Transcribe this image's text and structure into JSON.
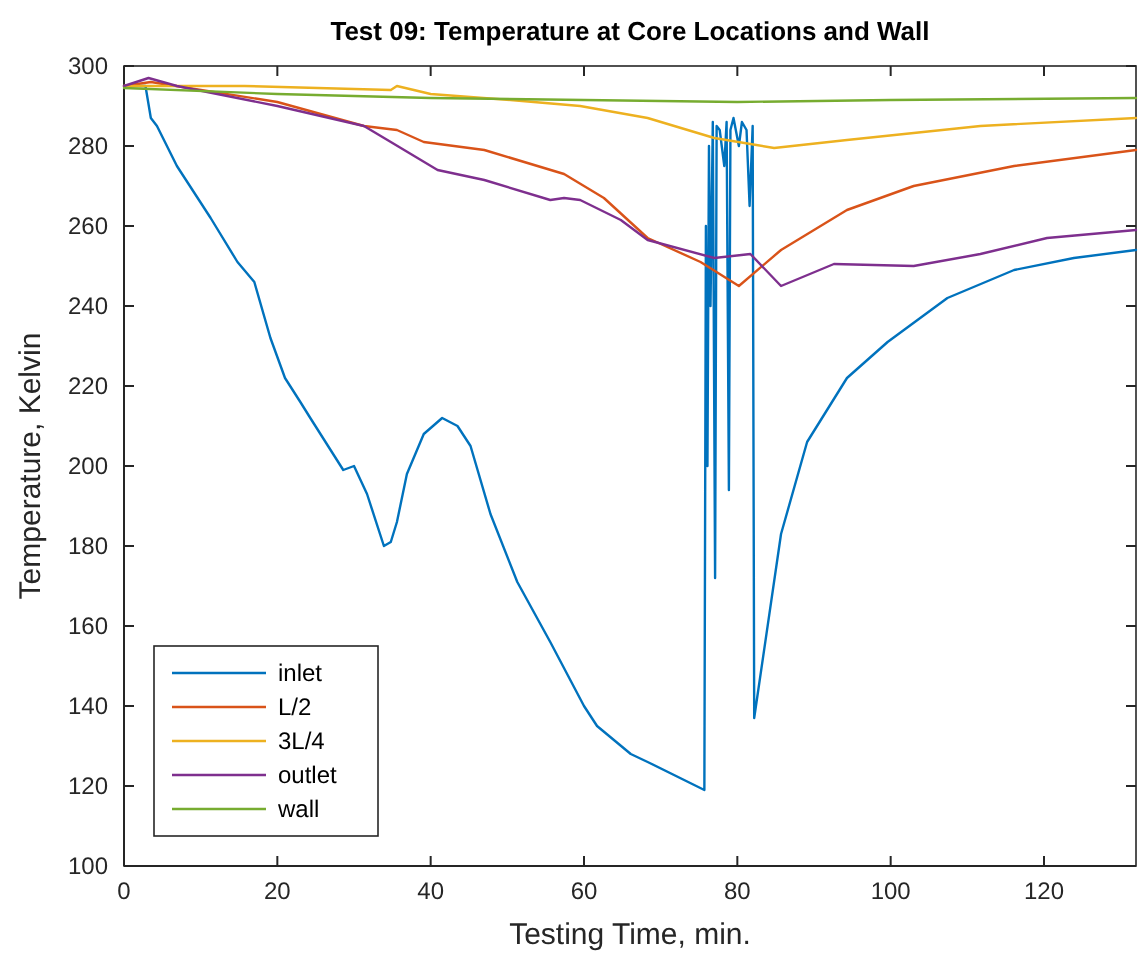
{
  "chart_data": {
    "type": "line",
    "title": "Test 09: Temperature at Core Locations and Wall",
    "xlabel": "Testing Time, min.",
    "ylabel": "Temperature, Kelvin",
    "xlim": [
      0,
      132
    ],
    "ylim": [
      100,
      300
    ],
    "xticks": [
      0,
      20,
      40,
      60,
      80,
      100,
      120
    ],
    "yticks": [
      100,
      120,
      140,
      160,
      180,
      200,
      220,
      240,
      260,
      280,
      300
    ],
    "grid": false,
    "legend": "bottom left",
    "line_style": "solid",
    "marker": "none",
    "series": [
      {
        "name": "inlet",
        "color": "#0072bd",
        "x": [
          0,
          2.8,
          3.5,
          4.3,
          6.9,
          11.3,
          14.8,
          17,
          19.1,
          21,
          23,
          24.3,
          28.6,
          30,
          31.7,
          33.9,
          34.8,
          35.6,
          36.9,
          39.1,
          41.5,
          43.5,
          45.2,
          47.8,
          51.3,
          55.6,
          60,
          61.7,
          66.1,
          68.3,
          75.7,
          75.9,
          76.1,
          76.3,
          76.5,
          76.8,
          77.1,
          77.3,
          77.7,
          78.3,
          78.6,
          78.9,
          79.1,
          79.5,
          80.2,
          80.6,
          81.2,
          81.6,
          82,
          82.2,
          85.7,
          89.1,
          94.3,
          99.6,
          107.4,
          116.1,
          123.9,
          132
        ],
        "values": [
          295,
          295,
          287,
          285,
          275,
          262,
          251,
          246,
          232,
          222,
          216,
          212,
          199,
          200,
          193,
          180,
          181,
          186,
          198,
          208,
          212,
          210,
          205,
          188,
          171,
          156,
          140,
          135,
          128,
          126,
          119,
          260,
          200,
          280,
          240,
          286,
          172,
          285,
          284,
          275,
          286,
          194,
          284,
          287,
          280,
          286,
          284,
          265,
          285,
          137,
          183,
          206,
          222,
          231,
          242,
          249,
          252,
          254
        ]
      },
      {
        "name": "L/2",
        "color": "#d95319",
        "x": [
          0,
          3.5,
          20,
          31.3,
          35.6,
          39.1,
          47,
          57.4,
          62.6,
          68.3,
          75.2,
          80.2,
          85.7,
          94.3,
          103,
          116.1,
          132
        ],
        "values": [
          295,
          296,
          291,
          285,
          284,
          281,
          279,
          273,
          267,
          257,
          251,
          245,
          254,
          264,
          270,
          275,
          279
        ]
      },
      {
        "name": "3L/4",
        "color": "#edb120",
        "x": [
          0,
          15.7,
          34.8,
          35.6,
          40,
          50.4,
          59.5,
          68.3,
          77,
          84.8,
          94.3,
          111.7,
          132
        ],
        "values": [
          295,
          295,
          294,
          295,
          293,
          291.5,
          290,
          287,
          282,
          279.5,
          281.5,
          285,
          287
        ]
      },
      {
        "name": "outlet",
        "color": "#7e2f8e",
        "x": [
          0,
          3.2,
          6.9,
          20,
          31.3,
          34.8,
          40.9,
          47,
          55.6,
          57.4,
          59.5,
          64.8,
          68.3,
          77,
          81.7,
          85.7,
          92.6,
          103,
          111.7,
          120.4,
          132
        ],
        "values": [
          295,
          297,
          295,
          290,
          285,
          281,
          274,
          271.5,
          266.5,
          267,
          266.5,
          261.5,
          256.5,
          252,
          253,
          245,
          250.5,
          250,
          253,
          257,
          259
        ]
      },
      {
        "name": "wall",
        "color": "#77ac30",
        "x": [
          0,
          20,
          40,
          60,
          80,
          100,
          132
        ],
        "values": [
          294.5,
          293,
          292,
          291.5,
          291,
          291.5,
          292
        ]
      }
    ]
  }
}
